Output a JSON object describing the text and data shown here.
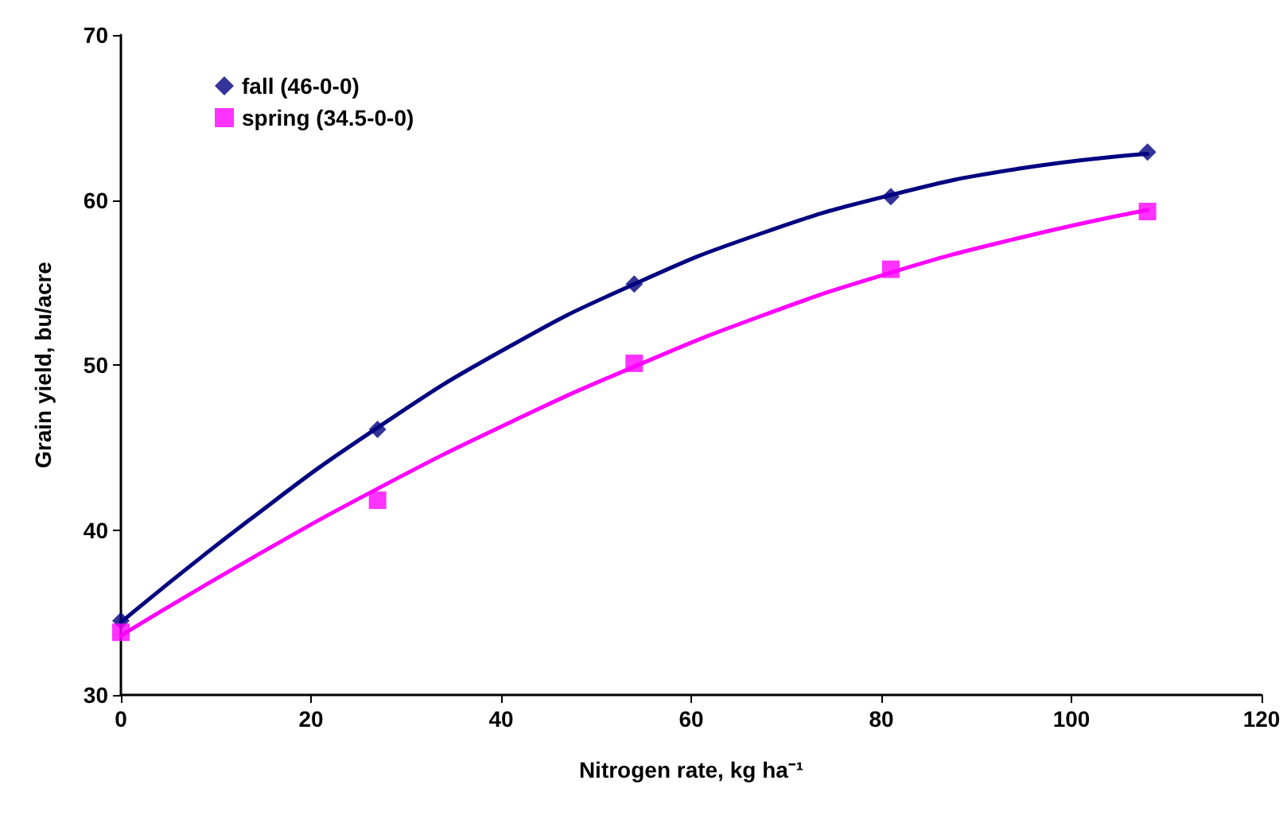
{
  "chart_data": {
    "type": "scatter",
    "xlabel": "Nitrogen rate, kg ha⁻¹",
    "ylabel": "Grain yield, bu/acre",
    "xlim": [
      0,
      120
    ],
    "xticks": [
      0,
      20,
      40,
      60,
      80,
      100,
      120
    ],
    "ylim": [
      30,
      70
    ],
    "yticks": [
      30,
      40,
      50,
      60,
      70
    ],
    "grid": false,
    "legend": "top left",
    "series": [
      {
        "name": "fall (46-0-0)",
        "color": "#000080",
        "marker": "diamond",
        "x": [
          0,
          27,
          54,
          81,
          108
        ],
        "values": [
          34.5,
          46.1,
          54.9,
          60.2,
          62.9
        ]
      },
      {
        "name": "spring (34.5-0-0)",
        "color": "#ff00ff",
        "marker": "square",
        "x": [
          0,
          27,
          54,
          81,
          108
        ],
        "values": [
          33.8,
          41.8,
          50.1,
          55.8,
          59.3
        ]
      },
      {
        "type": "line",
        "color": "#000080",
        "marker": "none",
        "x": [
          0,
          13.5,
          27,
          40.5,
          54,
          67.5,
          81,
          94.5,
          108
        ],
        "values": [
          34.4,
          40.6,
          46.2,
          51.0,
          54.9,
          58.0,
          60.3,
          61.9,
          62.8
        ]
      },
      {
        "type": "line",
        "color": "#ff00ff",
        "marker": "none",
        "x": [
          0,
          13.5,
          27,
          40.5,
          54,
          67.5,
          81,
          94.5,
          108
        ],
        "values": [
          33.6,
          38.2,
          42.5,
          46.4,
          49.9,
          53.0,
          55.6,
          57.7,
          59.4
        ]
      }
    ]
  }
}
